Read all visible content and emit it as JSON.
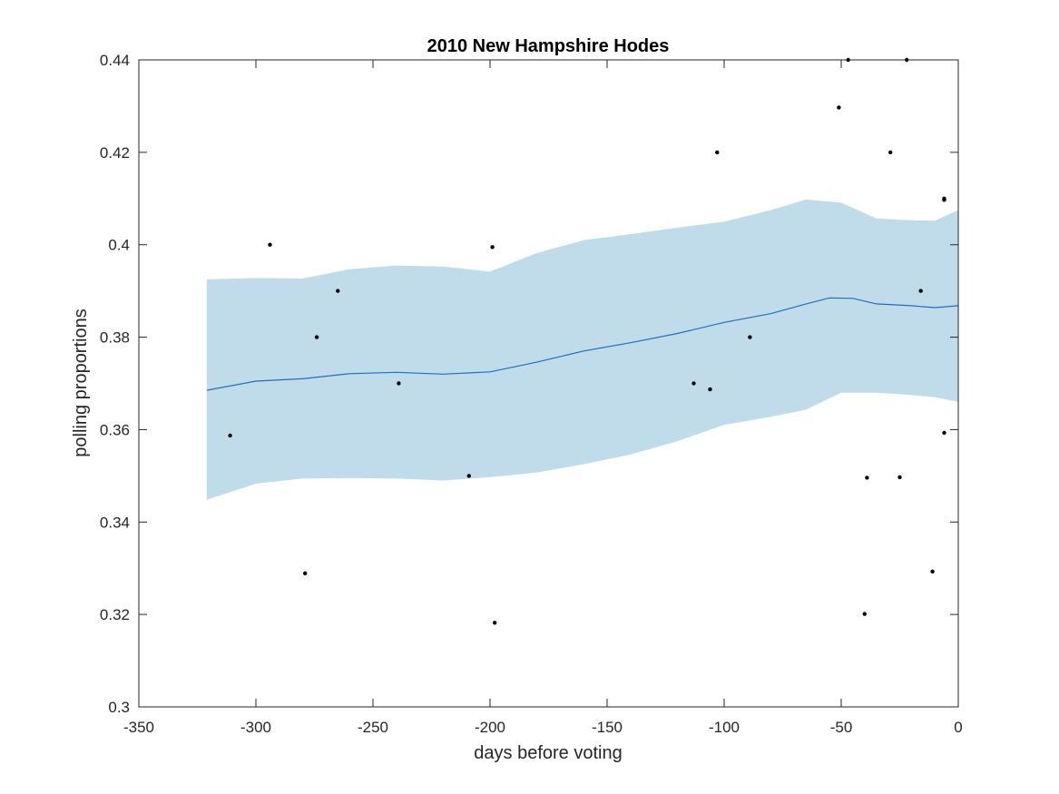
{
  "chart_data": {
    "type": "scatter",
    "title": "2010 New Hampshire Hodes",
    "xlabel": "days before voting",
    "ylabel": "polling proportions",
    "xlim": [
      -350,
      0
    ],
    "ylim": [
      0.3,
      0.44
    ],
    "xticks": [
      -350,
      -300,
      -250,
      -200,
      -150,
      -100,
      -50,
      0
    ],
    "yticks": [
      0.3,
      0.32,
      0.34,
      0.36,
      0.38,
      0.4,
      0.42,
      0.44
    ],
    "xtick_labels": [
      "-350",
      "-300",
      "-250",
      "-200",
      "-150",
      "-100",
      "-50",
      "0"
    ],
    "ytick_labels": [
      "0.3",
      "0.32",
      "0.34",
      "0.36",
      "0.38",
      "0.4",
      "0.42",
      "0.44"
    ],
    "grid": false,
    "colors": {
      "band": "#c0dcea",
      "trend": "#1f6fbf",
      "points": "#000000",
      "axes": "#262626"
    },
    "band": {
      "x": [
        -321,
        -300,
        -280,
        -260,
        -240,
        -220,
        -200,
        -180,
        -160,
        -140,
        -120,
        -100,
        -80,
        -65,
        -50,
        -35,
        -20,
        -10,
        0
      ],
      "upper": [
        0.3925,
        0.3928,
        0.3927,
        0.3947,
        0.3955,
        0.3953,
        0.3942,
        0.3982,
        0.401,
        0.4023,
        0.4037,
        0.405,
        0.4075,
        0.4098,
        0.4091,
        0.4057,
        0.4053,
        0.4052,
        0.4075
      ],
      "lower": [
        0.3448,
        0.3483,
        0.3494,
        0.3495,
        0.3494,
        0.349,
        0.3497,
        0.3507,
        0.3525,
        0.3546,
        0.3575,
        0.361,
        0.3628,
        0.3643,
        0.368,
        0.368,
        0.3675,
        0.367,
        0.366
      ]
    },
    "series": [
      {
        "type": "line",
        "x": [
          -321,
          -300,
          -280,
          -260,
          -240,
          -220,
          -200,
          -180,
          -160,
          -140,
          -120,
          -100,
          -80,
          -65,
          -55,
          -45,
          -35,
          -20,
          -10,
          0
        ],
        "values": [
          0.3685,
          0.3705,
          0.371,
          0.3721,
          0.3724,
          0.372,
          0.3725,
          0.3746,
          0.377,
          0.3788,
          0.3808,
          0.3832,
          0.3851,
          0.3872,
          0.3885,
          0.3884,
          0.3872,
          0.3868,
          0.3864,
          0.3868
        ]
      },
      {
        "type": "scatter",
        "x": [
          -311,
          -294,
          -279,
          -274,
          -265,
          -239,
          -209,
          -199,
          -198,
          -113,
          -106,
          -103,
          -89,
          -51,
          -47,
          -40,
          -39,
          -29,
          -25,
          -22,
          -16,
          -11,
          -6,
          -6,
          -6
        ],
        "values": [
          0.3587,
          0.4,
          0.3289,
          0.38,
          0.39,
          0.37,
          0.35,
          0.3995,
          0.3182,
          0.37,
          0.3687,
          0.42,
          0.38,
          0.4297,
          0.44,
          0.3201,
          0.3496,
          0.42,
          0.3497,
          0.44,
          0.39,
          0.3293,
          0.41,
          0.4097,
          0.3593
        ]
      }
    ]
  }
}
